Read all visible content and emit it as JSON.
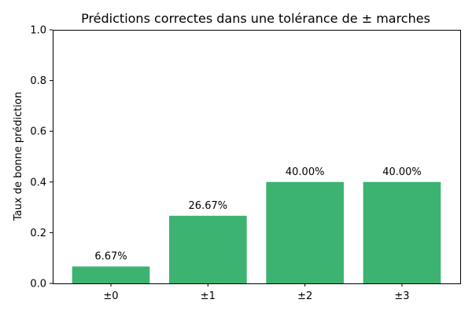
{
  "chart_data": {
    "type": "bar",
    "title": "Prédictions correctes dans une tolérance de ± marches",
    "xlabel": "",
    "ylabel": "Taux de bonne prédiction",
    "categories": [
      "±0",
      "±1",
      "±2",
      "±3"
    ],
    "values": [
      0.0667,
      0.2667,
      0.4,
      0.4
    ],
    "data_labels": [
      "6.67%",
      "26.67%",
      "40.00%",
      "40.00%"
    ],
    "ylim": [
      0,
      1.0
    ],
    "yticks": [
      0.0,
      0.2,
      0.4,
      0.6,
      0.8,
      1.0
    ],
    "ytick_labels": [
      "0.0",
      "0.2",
      "0.4",
      "0.6",
      "0.8",
      "1.0"
    ],
    "grid": false,
    "bar_color": "#3cb371"
  }
}
